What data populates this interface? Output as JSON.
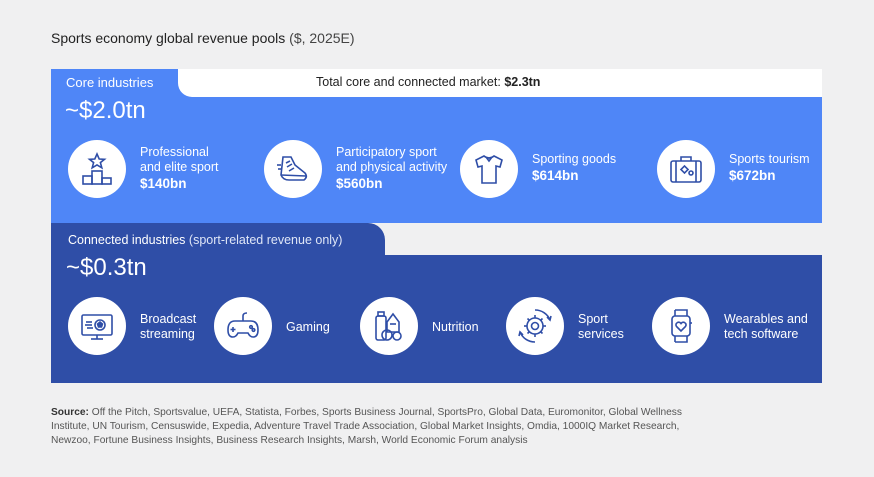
{
  "title": {
    "main": "Sports economy global revenue pools",
    "unit": "($, 2025E)"
  },
  "total": {
    "label": "Total core and connected market:",
    "value": "$2.3tn"
  },
  "core": {
    "label": "Core industries",
    "value": "~$2.0tn",
    "items": [
      {
        "line1": "Professional",
        "line2": "and elite sport",
        "value": "$140bn",
        "icon": "podium-icon"
      },
      {
        "line1": "Participatory sport",
        "line2": "and physical activity",
        "value": "$560bn",
        "icon": "running-shoe-icon"
      },
      {
        "line1": "Sporting goods",
        "line2": "",
        "value": "$614bn",
        "icon": "jersey-icon"
      },
      {
        "line1": "Sports tourism",
        "line2": "",
        "value": "$672bn",
        "icon": "suitcase-icon"
      }
    ]
  },
  "connected": {
    "label": "Connected industries",
    "sublabel": "(sport-related revenue only)",
    "value": "~$0.3tn",
    "items": [
      {
        "line1": "Broadcast",
        "line2": "streaming",
        "icon": "tv-icon"
      },
      {
        "line1": "Gaming",
        "line2": "",
        "icon": "gamepad-icon"
      },
      {
        "line1": "Nutrition",
        "line2": "",
        "icon": "nutrition-icon"
      },
      {
        "line1": "Sport",
        "line2": "services",
        "icon": "gear-icon"
      },
      {
        "line1": "Wearables and",
        "line2": "tech software",
        "icon": "smartwatch-icon"
      }
    ]
  },
  "source": {
    "label": "Source:",
    "text": "Off the Pitch, Sportsvalue, UEFA, Statista, Forbes, Sports Business Journal, SportsPro, Global Data, Euromonitor, Global Wellness Institute, UN Tourism, Censuswide, Expedia, Adventure Travel Trade Association, Global Market Insights, Omdia, 1000IQ Market Research, Newzoo, Fortune Business Insights, Business Research Insights, Marsh, World Economic Forum analysis"
  },
  "colors": {
    "core": "#4f86f7",
    "connected": "#2f4ea7",
    "background": "#f0f0f1"
  }
}
